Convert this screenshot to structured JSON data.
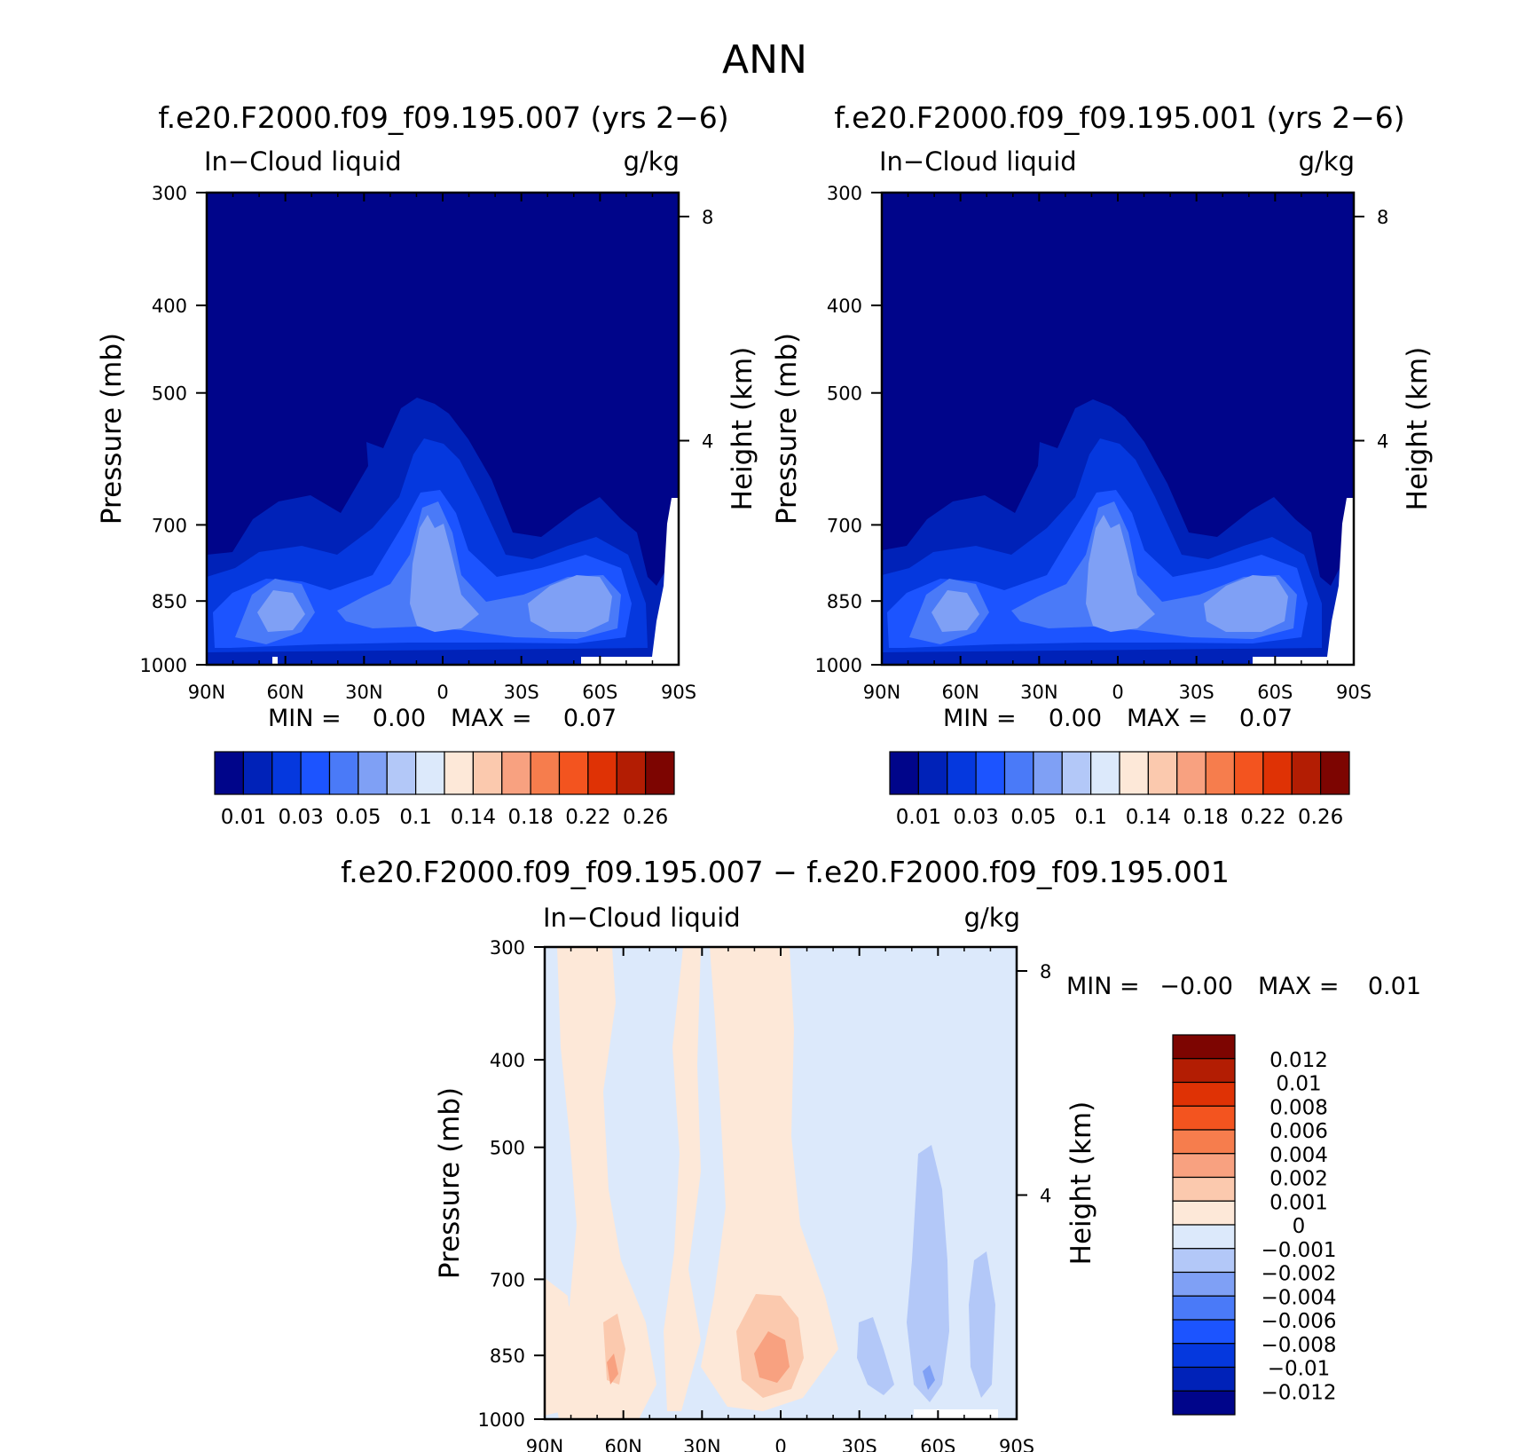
{
  "page_title": "ANN",
  "chart_data": [
    {
      "type": "heatmap",
      "title": "f.e20.F2000.f09_f09.195.007 (yrs 2−6)",
      "left_label": "In−Cloud liquid",
      "right_label": "g/kg",
      "ylabel": "Pressure (mb)",
      "y2label": "Height (km)",
      "x_ticklabels": [
        "90N",
        "60N",
        "30N",
        "0",
        "30S",
        "60S",
        "90S"
      ],
      "y_ticklabels": [
        "300",
        "400",
        "500",
        "700",
        "850",
        "1000"
      ],
      "y2_ticklabels": [
        "8",
        "4"
      ],
      "min_label": "MIN =",
      "min_value": "0.00",
      "max_label": "MAX =",
      "max_value": "0.07",
      "colorbar_levels": [
        0.005,
        0.01,
        0.02,
        0.03,
        0.04,
        0.05,
        0.07,
        0.1,
        0.12,
        0.14,
        0.16,
        0.18,
        0.2,
        0.22,
        0.24,
        0.26
      ],
      "colorbar_ticklabels": [
        "0.01",
        "0.03",
        "0.05",
        "0.1",
        "0.14",
        "0.18",
        "0.22",
        "0.26"
      ],
      "colorbar_colors": [
        "#00058a",
        "#0022b8",
        "#0538de",
        "#1c54ff",
        "#4a7af8",
        "#7fa0f5",
        "#b3c8f8",
        "#dce9fb",
        "#fde8d8",
        "#fbc9ae",
        "#f8a180",
        "#f67d4d",
        "#f3541f",
        "#df3205",
        "#b31d03",
        "#7d0501"
      ],
      "pressure_levels_mb": [
        300,
        400,
        500,
        700,
        850,
        1000
      ],
      "height_km_ticks": [
        8,
        4
      ],
      "colors": {
        "fill": "#00058a"
      }
    },
    {
      "type": "heatmap",
      "title": "f.e20.F2000.f09_f09.195.001 (yrs 2−6)",
      "left_label": "In−Cloud liquid",
      "right_label": "g/kg",
      "ylabel": "Pressure (mb)",
      "y2label": "Height (km)",
      "x_ticklabels": [
        "90N",
        "60N",
        "30N",
        "0",
        "30S",
        "60S",
        "90S"
      ],
      "y_ticklabels": [
        "300",
        "400",
        "500",
        "700",
        "850",
        "1000"
      ],
      "y2_ticklabels": [
        "8",
        "4"
      ],
      "min_label": "MIN =",
      "min_value": "0.00",
      "max_label": "MAX =",
      "max_value": "0.07",
      "colorbar_levels": [
        0.005,
        0.01,
        0.02,
        0.03,
        0.04,
        0.05,
        0.07,
        0.1,
        0.12,
        0.14,
        0.16,
        0.18,
        0.2,
        0.22,
        0.24,
        0.26
      ],
      "colorbar_ticklabels": [
        "0.01",
        "0.03",
        "0.05",
        "0.1",
        "0.14",
        "0.18",
        "0.22",
        "0.26"
      ],
      "colorbar_colors": [
        "#00058a",
        "#0022b8",
        "#0538de",
        "#1c54ff",
        "#4a7af8",
        "#7fa0f5",
        "#b3c8f8",
        "#dce9fb",
        "#fde8d8",
        "#fbc9ae",
        "#f8a180",
        "#f67d4d",
        "#f3541f",
        "#df3205",
        "#b31d03",
        "#7d0501"
      ],
      "pressure_levels_mb": [
        300,
        400,
        500,
        700,
        850,
        1000
      ],
      "height_km_ticks": [
        8,
        4
      ],
      "colors": {
        "fill": "#00058a"
      }
    },
    {
      "type": "heatmap",
      "title": "f.e20.F2000.f09_f09.195.007 − f.e20.F2000.f09_f09.195.001",
      "left_label": "In−Cloud liquid",
      "right_label": "g/kg",
      "ylabel": "Pressure (mb)",
      "y2label": "Height (km)",
      "x_ticklabels": [
        "90N",
        "60N",
        "30N",
        "0",
        "30S",
        "60S",
        "90S"
      ],
      "y_ticklabels": [
        "300",
        "400",
        "500",
        "700",
        "850",
        "1000"
      ],
      "y2_ticklabels": [
        "8",
        "4"
      ],
      "min_label": "MIN =",
      "min_value": "−0.00",
      "max_label": "MAX =",
      "max_value": "0.01",
      "colorbar_ticklabels": [
        "0.012",
        "0.01",
        "0.008",
        "0.006",
        "0.004",
        "0.002",
        "0.001",
        "0",
        "−0.001",
        "−0.002",
        "−0.004",
        "−0.006",
        "−0.008",
        "−0.01",
        "−0.012"
      ],
      "colorbar_colors": [
        "#7d0501",
        "#b31d03",
        "#df3205",
        "#f3541f",
        "#f67d4d",
        "#f8a180",
        "#fbc9ae",
        "#fde8d8",
        "#dce9fb",
        "#b3c8f8",
        "#7fa0f5",
        "#4a7af8",
        "#1c54ff",
        "#0538de",
        "#0022b8",
        "#00058a"
      ],
      "pressure_levels_mb": [
        300,
        400,
        500,
        700,
        850,
        1000
      ],
      "height_km_ticks": [
        8,
        4
      ],
      "colors": {
        "fill": "#dce9fb"
      }
    }
  ]
}
